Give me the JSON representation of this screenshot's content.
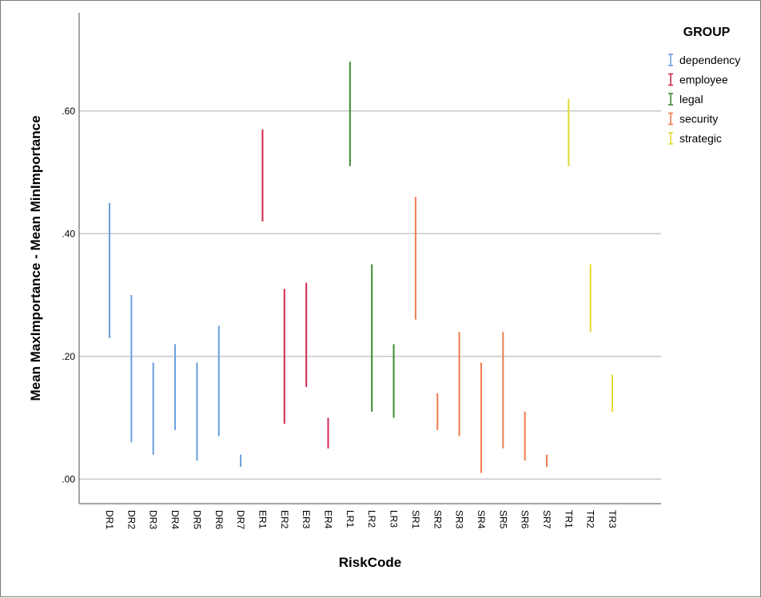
{
  "chart_data": {
    "type": "range-bar",
    "xlabel": "RiskCode",
    "ylabel": "Mean MaxImportance - Mean MinImportance",
    "ylim": [
      -0.04,
      0.76
    ],
    "yticks": [
      0.0,
      0.2,
      0.4,
      0.6
    ],
    "ytick_labels": [
      ".00",
      ".20",
      ".40",
      ".60"
    ],
    "grid": "horizontal",
    "legend": {
      "title": "GROUP",
      "position": "top-right",
      "entries": [
        {
          "name": "dependency",
          "color": "#6A9FDC"
        },
        {
          "name": "employee",
          "color": "#D1284F"
        },
        {
          "name": "legal",
          "color": "#3D8B32"
        },
        {
          "name": "security",
          "color": "#F07C4F"
        },
        {
          "name": "strategic",
          "color": "#E1DA31"
        }
      ]
    },
    "categories": [
      "DR1",
      "DR2",
      "DR3",
      "DR4",
      "DR5",
      "DR6",
      "DR7",
      "ER1",
      "ER2",
      "ER3",
      "ER4",
      "LR1",
      "LR2",
      "LR3",
      "SR1",
      "SR2",
      "SR3",
      "SR4",
      "SR5",
      "SR6",
      "SR7",
      "TR1",
      "TR2",
      "TR3"
    ],
    "ranges": [
      {
        "code": "DR1",
        "group": "dependency",
        "low": 0.23,
        "high": 0.45
      },
      {
        "code": "DR2",
        "group": "dependency",
        "low": 0.06,
        "high": 0.3
      },
      {
        "code": "DR3",
        "group": "dependency",
        "low": 0.04,
        "high": 0.19
      },
      {
        "code": "DR4",
        "group": "dependency",
        "low": 0.08,
        "high": 0.22
      },
      {
        "code": "DR5",
        "group": "dependency",
        "low": 0.03,
        "high": 0.19
      },
      {
        "code": "DR6",
        "group": "dependency",
        "low": 0.07,
        "high": 0.25
      },
      {
        "code": "DR7",
        "group": "dependency",
        "low": 0.02,
        "high": 0.04
      },
      {
        "code": "ER1",
        "group": "employee",
        "low": 0.42,
        "high": 0.57
      },
      {
        "code": "ER2",
        "group": "employee",
        "low": 0.09,
        "high": 0.31
      },
      {
        "code": "ER3",
        "group": "employee",
        "low": 0.15,
        "high": 0.32
      },
      {
        "code": "ER4",
        "group": "employee",
        "low": 0.05,
        "high": 0.1
      },
      {
        "code": "LR1",
        "group": "legal",
        "low": 0.51,
        "high": 0.68
      },
      {
        "code": "LR2",
        "group": "legal",
        "low": 0.11,
        "high": 0.35
      },
      {
        "code": "LR3",
        "group": "legal",
        "low": 0.1,
        "high": 0.22
      },
      {
        "code": "SR1",
        "group": "security",
        "low": 0.26,
        "high": 0.46
      },
      {
        "code": "SR2",
        "group": "security",
        "low": 0.08,
        "high": 0.14
      },
      {
        "code": "SR3",
        "group": "security",
        "low": 0.07,
        "high": 0.24
      },
      {
        "code": "SR4",
        "group": "security",
        "low": 0.01,
        "high": 0.19
      },
      {
        "code": "SR5",
        "group": "security",
        "low": 0.05,
        "high": 0.24
      },
      {
        "code": "SR6",
        "group": "security",
        "low": 0.03,
        "high": 0.11
      },
      {
        "code": "SR7",
        "group": "security",
        "low": 0.02,
        "high": 0.04
      },
      {
        "code": "TR1",
        "group": "strategic",
        "low": 0.51,
        "high": 0.62
      },
      {
        "code": "TR2",
        "group": "strategic",
        "low": 0.24,
        "high": 0.35
      },
      {
        "code": "TR3",
        "group": "strategic",
        "low": 0.11,
        "high": 0.17
      }
    ]
  }
}
